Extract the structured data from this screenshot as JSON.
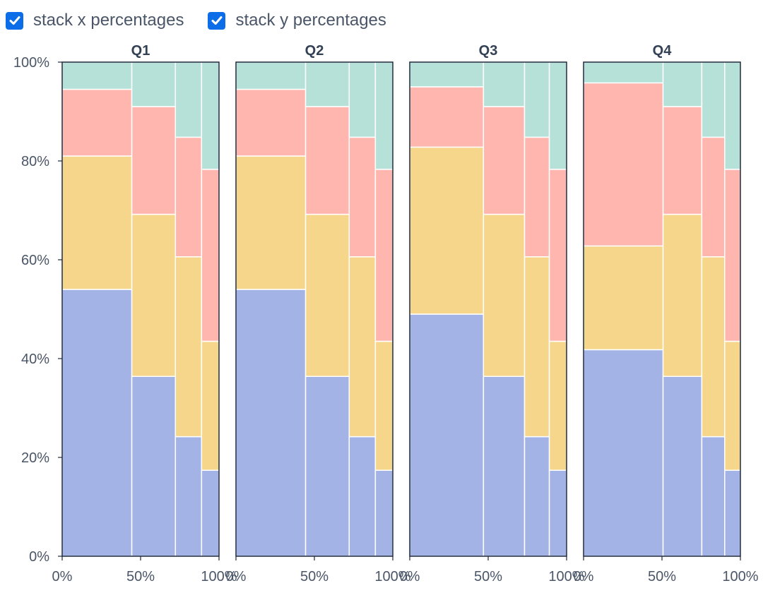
{
  "controls": [
    {
      "label": "stack x percentages",
      "checked": true
    },
    {
      "label": "stack y percentages",
      "checked": true
    }
  ],
  "colors": {
    "accent": "#0b6ee8",
    "series": [
      "#a3b3e6",
      "#f5d68a",
      "#ffb6ae",
      "#b5e1d8"
    ],
    "axis": "#1e293b"
  },
  "chart_data": {
    "type": "marimekko",
    "y_ticks": [
      "0%",
      "20%",
      "40%",
      "60%",
      "80%",
      "100%"
    ],
    "x_ticks": [
      "0%",
      "50%",
      "100%"
    ],
    "ylim": [
      0,
      100
    ],
    "xlim": [
      0,
      100
    ],
    "panels": [
      {
        "title": "Q1",
        "x_widths": [
          44.4,
          27.8,
          16.7,
          11.1
        ],
        "columns": [
          [
            54,
            27,
            13.5,
            5.5
          ],
          [
            36.4,
            32.8,
            21.8,
            9
          ],
          [
            24.2,
            36.4,
            24.2,
            15.2
          ],
          [
            17.4,
            26.1,
            34.8,
            21.7
          ]
        ]
      },
      {
        "title": "Q2",
        "x_widths": [
          44.4,
          27.8,
          16.7,
          11.1
        ],
        "columns": [
          [
            54,
            27,
            13.5,
            5.5
          ],
          [
            36.4,
            32.8,
            21.8,
            9
          ],
          [
            24.2,
            36.4,
            24.2,
            15.2
          ],
          [
            17.4,
            26.1,
            34.8,
            21.7
          ]
        ]
      },
      {
        "title": "Q3",
        "x_widths": [
          47,
          26.2,
          15.8,
          11
        ],
        "columns": [
          [
            49,
            33.8,
            12.2,
            5
          ],
          [
            36.4,
            32.8,
            21.8,
            9
          ],
          [
            24.2,
            36.4,
            24.2,
            15.2
          ],
          [
            17.4,
            26.1,
            34.8,
            21.7
          ]
        ]
      },
      {
        "title": "Q4",
        "x_widths": [
          50.7,
          24.7,
          14.6,
          10
        ],
        "columns": [
          [
            41.8,
            21,
            33,
            4.2
          ],
          [
            36.4,
            32.8,
            21.8,
            9
          ],
          [
            24.2,
            36.4,
            24.2,
            15.2
          ],
          [
            17.4,
            26.1,
            34.8,
            21.7
          ]
        ]
      }
    ]
  }
}
